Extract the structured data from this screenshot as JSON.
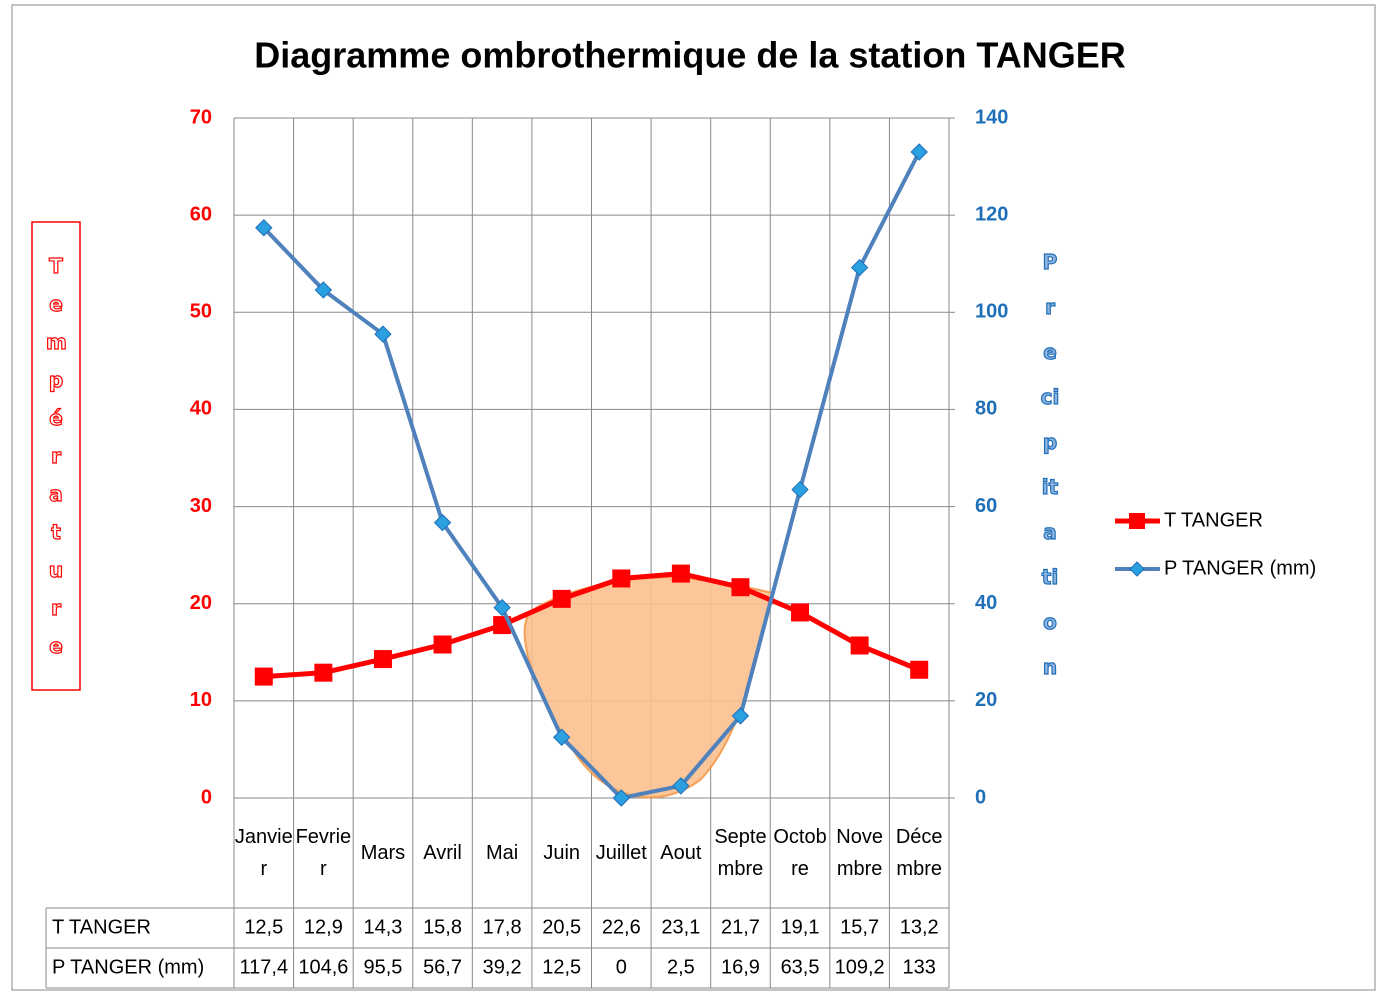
{
  "chart_data": {
    "type": "line",
    "title": "Diagramme ombrothermique de la station TANGER",
    "categories": [
      "Janvier",
      "Fevrier",
      "Mars",
      "Avril",
      "Mai",
      "Juin",
      "Juillet",
      "Aout",
      "Septembre",
      "Octobre",
      "Novembre",
      "Décembre"
    ],
    "y_label": "Température",
    "y2_label": "Precipitation",
    "ylim": [
      0,
      70
    ],
    "yticks": [
      0,
      10,
      20,
      30,
      40,
      50,
      60,
      70
    ],
    "y2lim": [
      0,
      140
    ],
    "y2ticks": [
      0,
      20,
      40,
      60,
      80,
      100,
      120,
      140
    ],
    "grid": true,
    "legend": "right",
    "series": [
      {
        "name": "T TANGER",
        "color": "#ff0000",
        "values": [
          12.5,
          12.9,
          14.3,
          15.8,
          17.8,
          20.5,
          22.6,
          23.1,
          21.7,
          19.1,
          15.7,
          13.2
        ],
        "value_labels": [
          "12,5",
          "12,9",
          "14,3",
          "15,8",
          "17,8",
          "20,5",
          "22,6",
          "23,1",
          "21,7",
          "19,1",
          "15,7",
          "13,2"
        ]
      },
      {
        "name": "P TANGER (mm)",
        "color": "#4f81bd",
        "axis": "y2",
        "values": [
          117.4,
          104.6,
          95.5,
          56.7,
          39.2,
          12.5,
          0,
          2.5,
          16.9,
          63.5,
          109.2,
          133
        ],
        "value_labels": [
          "117,4",
          "104,6",
          "95,5",
          "56,7",
          "39,2",
          "12,5",
          "0",
          "2,5",
          "16,9",
          "63,5",
          "109,2",
          "133"
        ]
      }
    ]
  }
}
